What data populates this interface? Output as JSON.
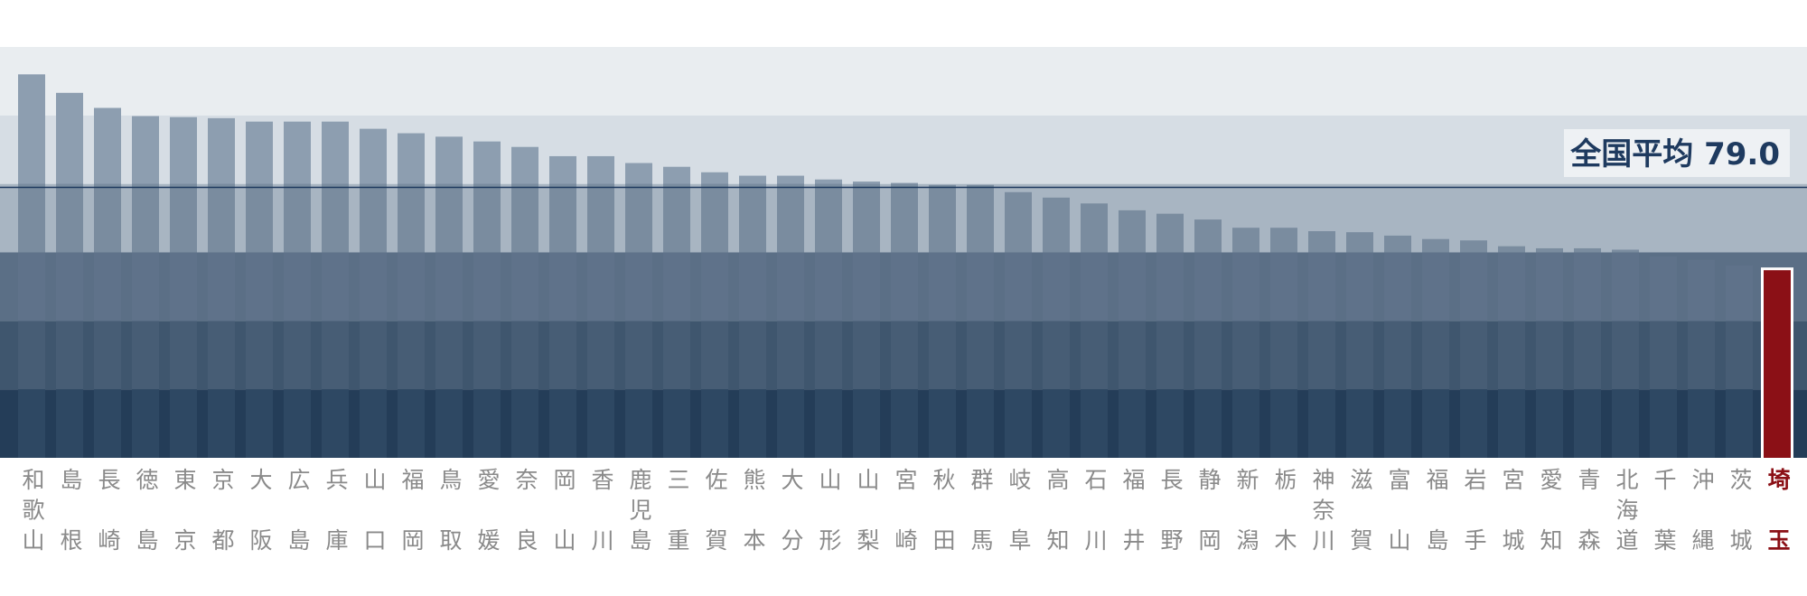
{
  "chart_data": {
    "type": "bar",
    "categories": [
      "和歌山",
      "島根",
      "長崎",
      "徳島",
      "東京",
      "京都",
      "大阪",
      "広島",
      "兵庫",
      "山口",
      "福岡",
      "鳥取",
      "愛媛",
      "奈良",
      "岡山",
      "香川",
      "鹿児島",
      "三重",
      "佐賀",
      "熊本",
      "大分",
      "山形",
      "山梨",
      "宮崎",
      "秋田",
      "群馬",
      "岐阜",
      "高知",
      "石川",
      "福井",
      "長野",
      "静岡",
      "新潟",
      "栃木",
      "神奈川",
      "滋賀",
      "富山",
      "福島",
      "岩手",
      "宮城",
      "愛知",
      "青森",
      "北海道",
      "千葉",
      "沖縄",
      "茨城",
      "埼玉"
    ],
    "values": [
      112,
      106.6,
      102.2,
      99.8,
      99.5,
      99.2,
      98.2,
      98.2,
      98.2,
      96.1,
      94.8,
      93.8,
      92.4,
      90.8,
      88.1,
      88.1,
      86.1,
      85.0,
      83.4,
      82.4,
      82.4,
      81.3,
      80.7,
      80.3,
      79.7,
      79.7,
      77.6,
      76.0,
      74.3,
      72.3,
      71.3,
      69.6,
      67.2,
      67.2,
      66.2,
      65.9,
      64.9,
      63.9,
      63.5,
      61.8,
      61.2,
      61.2,
      60.8,
      58.8,
      57.8,
      56.1,
      54.8
    ],
    "highlight": "埼玉",
    "highlight_color": "#8b1016",
    "reference_line": {
      "label": "全国平均 79.0",
      "value": 79.0,
      "color": "#1e3a5f"
    },
    "ylim": [
      0,
      120
    ],
    "yticks": [
      0,
      20,
      40,
      60,
      80,
      100,
      120
    ]
  }
}
